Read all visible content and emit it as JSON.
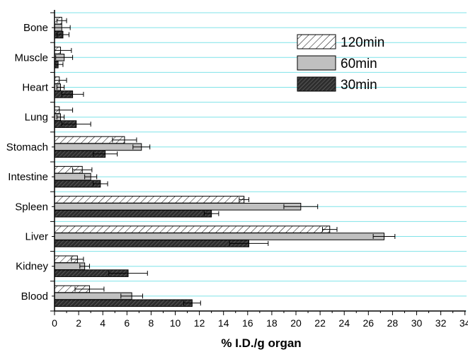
{
  "chart_data": {
    "type": "bar",
    "orientation": "horizontal",
    "xlabel": "% I.D./g organ",
    "ylabel": "",
    "xlim": [
      0,
      35
    ],
    "x_ticks": [
      0,
      2,
      4,
      6,
      8,
      10,
      12,
      14,
      16,
      18,
      20,
      22,
      24,
      26,
      28,
      30,
      32,
      34
    ],
    "categories": [
      "Bone",
      "Muscle",
      "Heart",
      "Lung",
      "Stomach",
      "Intestine",
      "Spleen",
      "Liver",
      "Kidney",
      "Blood"
    ],
    "series": [
      {
        "name": "120min",
        "pattern": "light-hatch",
        "values": [
          0.6,
          0.5,
          0.4,
          0.4,
          5.8,
          2.3,
          15.7,
          22.8,
          1.9,
          2.9
        ],
        "errors": [
          0.4,
          0.9,
          0.6,
          1.1,
          1.0,
          0.8,
          0.4,
          0.6,
          0.5,
          1.2
        ]
      },
      {
        "name": "60min",
        "pattern": "gray",
        "values": [
          0.6,
          0.8,
          0.5,
          0.5,
          7.2,
          3.0,
          20.4,
          27.3,
          2.5,
          6.4
        ],
        "errors": [
          0.7,
          0.7,
          0.3,
          0.3,
          0.7,
          0.5,
          1.4,
          0.9,
          0.4,
          0.9
        ]
      },
      {
        "name": "30min",
        "pattern": "dark-hatch",
        "values": [
          0.7,
          0.3,
          1.5,
          1.8,
          4.2,
          3.8,
          13.0,
          16.1,
          6.1,
          11.4
        ],
        "errors": [
          0.5,
          0.4,
          0.9,
          1.2,
          1.0,
          0.6,
          0.6,
          1.6,
          1.6,
          0.7
        ]
      }
    ],
    "legend": {
      "position": "top-right"
    },
    "grid": true,
    "colors": {
      "grid": "#7fe3e8",
      "dark_fill": "#333333",
      "gray_fill": "#c0c0c0",
      "axis": "#000000"
    }
  }
}
